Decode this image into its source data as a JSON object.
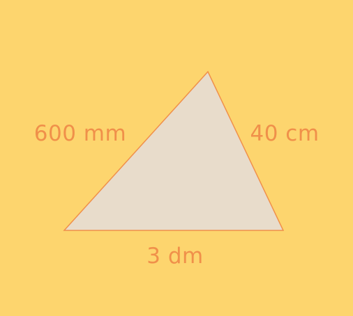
{
  "colors": {
    "background": "#FDD56E",
    "triangle_fill": "#E8DCCB",
    "triangle_stroke": "#F0904A",
    "label": "#F0904A"
  },
  "triangle": {
    "labels": {
      "left": "600 mm",
      "right": "40 cm",
      "bottom": "3 dm"
    }
  }
}
